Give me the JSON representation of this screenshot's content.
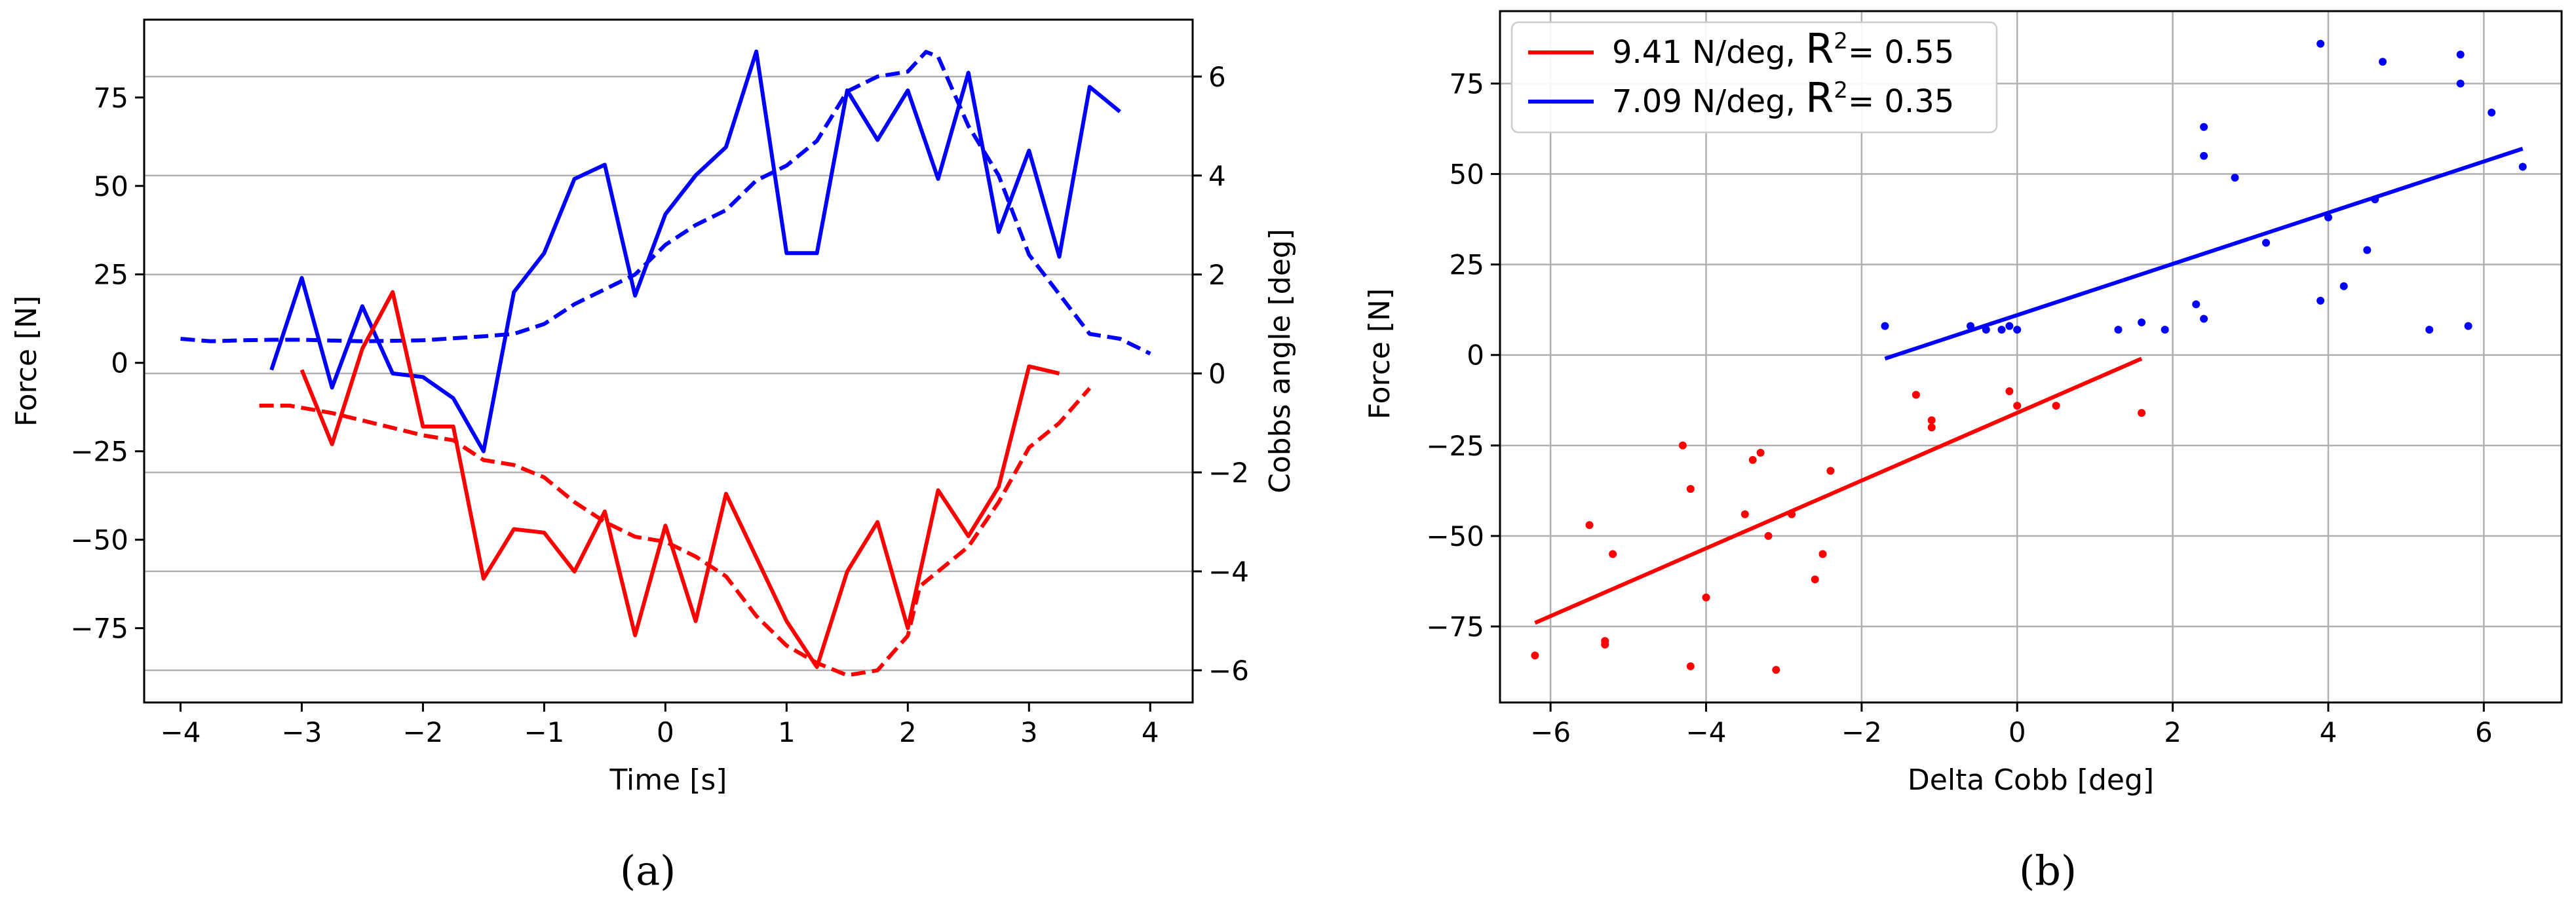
{
  "chart_data": [
    {
      "type": "line",
      "panel_label": "(a)",
      "xlabel": "Time [s]",
      "ylabel": "Force [N]",
      "ylabel_right": "Cobbs angle [deg]",
      "xlim": [
        -4.3,
        4.35
      ],
      "ylim": [
        -96,
        97
      ],
      "ylim_right": [
        -6.65,
        7.15
      ],
      "xticks": [
        -4,
        -3,
        -2,
        -1,
        0,
        1,
        2,
        3,
        4
      ],
      "xtick_labels": [
        "−4",
        "−3",
        "−2",
        "−1",
        "0",
        "1",
        "2",
        "3",
        "4"
      ],
      "yticks": [
        -75,
        -50,
        -25,
        0,
        25,
        50,
        75
      ],
      "ytick_labels": [
        "−75",
        "−50",
        "−25",
        "0",
        "25",
        "50",
        "75"
      ],
      "yticks_right": [
        -6,
        -4,
        -2,
        0,
        2,
        4,
        6
      ],
      "ytick_labels_right": [
        "−6",
        "−4",
        "−2",
        "0",
        "2",
        "4",
        "6"
      ],
      "grid": "horizontal lines at right-axis ticks",
      "series": [
        {
          "color": "#0000ff",
          "style": "solid",
          "axis": "left",
          "x": [
            -3.25,
            -3.0,
            -2.75,
            -2.5,
            -2.25,
            -2.0,
            -1.75,
            -1.5,
            -1.25,
            -1.0,
            -0.75,
            -0.5,
            -0.25,
            0.0,
            0.25,
            0.5,
            0.75,
            1.0,
            1.25,
            1.5,
            1.75,
            2.0,
            2.25,
            2.5,
            2.75,
            3.0,
            3.25,
            3.5,
            3.75
          ],
          "y": [
            -2,
            24,
            -7,
            16,
            -3,
            -4,
            -10,
            -25,
            20,
            31,
            52,
            56,
            19,
            42,
            53,
            61,
            88,
            31,
            31,
            77,
            63,
            77,
            52,
            82,
            37,
            60,
            30,
            78,
            71
          ]
        },
        {
          "color": "#0000ff",
          "style": "dashed",
          "axis": "right",
          "x": [
            -4.0,
            -3.75,
            -3.5,
            -3.25,
            -3.0,
            -2.5,
            -2.0,
            -1.5,
            -1.25,
            -1.0,
            -0.75,
            -0.5,
            -0.25,
            0.0,
            0.25,
            0.5,
            0.75,
            1.0,
            1.25,
            1.5,
            1.75,
            2.0,
            2.15,
            2.25,
            2.5,
            2.75,
            3.0,
            3.25,
            3.5,
            3.75,
            4.0
          ],
          "y": [
            0.7,
            0.65,
            0.67,
            0.68,
            0.68,
            0.65,
            0.67,
            0.75,
            0.8,
            1.0,
            1.4,
            1.7,
            2.0,
            2.6,
            3.0,
            3.3,
            3.9,
            4.2,
            4.7,
            5.7,
            6.0,
            6.1,
            6.5,
            6.4,
            5.0,
            4.0,
            2.4,
            1.6,
            0.8,
            0.7,
            0.4
          ]
        },
        {
          "color": "#ff0000",
          "style": "solid",
          "axis": "left",
          "x": [
            -3.0,
            -2.75,
            -2.5,
            -2.25,
            -2.0,
            -1.75,
            -1.5,
            -1.25,
            -1.0,
            -0.75,
            -0.5,
            -0.25,
            0.0,
            0.25,
            0.5,
            0.75,
            1.0,
            1.25,
            1.5,
            1.75,
            2.0,
            2.25,
            2.5,
            2.75,
            3.0,
            3.25
          ],
          "y": [
            -2,
            -23,
            4,
            20,
            -18,
            -18,
            -61,
            -47,
            -48,
            -59,
            -42,
            -77,
            -46,
            -73,
            -37,
            -55,
            -73,
            -86,
            -59,
            -45,
            -75,
            -36,
            -49,
            -35,
            -1,
            -3
          ]
        },
        {
          "color": "#ff0000",
          "style": "dashed",
          "axis": "right",
          "x": [
            -3.35,
            -3.1,
            -2.75,
            -2.5,
            -2.25,
            -2.0,
            -1.75,
            -1.5,
            -1.25,
            -1.0,
            -0.75,
            -0.5,
            -0.25,
            0.0,
            0.25,
            0.5,
            0.75,
            1.0,
            1.25,
            1.5,
            1.75,
            2.0,
            2.1,
            2.25,
            2.5,
            2.75,
            3.0,
            3.25,
            3.5
          ],
          "y": [
            -0.65,
            -0.65,
            -0.8,
            -0.95,
            -1.1,
            -1.25,
            -1.35,
            -1.75,
            -1.85,
            -2.1,
            -2.6,
            -3.0,
            -3.3,
            -3.4,
            -3.7,
            -4.1,
            -4.9,
            -5.5,
            -5.85,
            -6.1,
            -6.0,
            -5.3,
            -4.3,
            -4.0,
            -3.5,
            -2.6,
            -1.5,
            -1.0,
            -0.3
          ]
        }
      ]
    },
    {
      "type": "scatter",
      "panel_label": "(b)",
      "xlabel": "Delta Cobb [deg]",
      "ylabel": "Force [N]",
      "xlim": [
        -6.65,
        7.0
      ],
      "ylim": [
        -96,
        95
      ],
      "xticks": [
        -6,
        -4,
        -2,
        0,
        2,
        4,
        6
      ],
      "xtick_labels": [
        "−6",
        "−4",
        "−2",
        "0",
        "2",
        "4",
        "6"
      ],
      "yticks": [
        -75,
        -50,
        -25,
        0,
        25,
        50,
        75
      ],
      "ytick_labels": [
        "−75",
        "−50",
        "−25",
        "0",
        "25",
        "50",
        "75"
      ],
      "grid": true,
      "legend": "upper-left",
      "series": [
        {
          "color": "#ff0000",
          "legend_text": "9.41 N/deg,",
          "r_label": "R",
          "r_sup": "2",
          "r_value": "= 0.55",
          "fit": {
            "x": [
              -6.2,
              1.6
            ],
            "y": [
              -74,
              -1
            ]
          },
          "points": [
            [
              -6.2,
              -83
            ],
            [
              -5.3,
              -79
            ],
            [
              -5.3,
              -80
            ],
            [
              -5.5,
              -47
            ],
            [
              -5.2,
              -55
            ],
            [
              -4.3,
              -25
            ],
            [
              -4.2,
              -37
            ],
            [
              -4.2,
              -86
            ],
            [
              -4.0,
              -67
            ],
            [
              -3.5,
              -44
            ],
            [
              -3.4,
              -29
            ],
            [
              -3.3,
              -27
            ],
            [
              -3.2,
              -50
            ],
            [
              -3.1,
              -87
            ],
            [
              -2.9,
              -44
            ],
            [
              -2.6,
              -62
            ],
            [
              -2.5,
              -55
            ],
            [
              -2.4,
              -32
            ],
            [
              -1.3,
              -11
            ],
            [
              -1.1,
              -18
            ],
            [
              -1.1,
              -20
            ],
            [
              -0.1,
              -10
            ],
            [
              0.0,
              -14
            ],
            [
              0.5,
              -14
            ],
            [
              1.6,
              -16
            ]
          ]
        },
        {
          "color": "#0000ff",
          "legend_text": "7.09 N/deg,",
          "r_label": "R",
          "r_sup": "2",
          "r_value": "= 0.35",
          "fit": {
            "x": [
              -1.7,
              6.5
            ],
            "y": [
              -1,
              57
            ]
          },
          "points": [
            [
              -1.7,
              8
            ],
            [
              -0.6,
              8
            ],
            [
              -0.4,
              7
            ],
            [
              -0.2,
              7
            ],
            [
              -0.1,
              8
            ],
            [
              0.0,
              7
            ],
            [
              1.3,
              7
            ],
            [
              1.6,
              9
            ],
            [
              1.9,
              7
            ],
            [
              2.3,
              14
            ],
            [
              2.4,
              10
            ],
            [
              2.4,
              55
            ],
            [
              2.4,
              63
            ],
            [
              2.8,
              49
            ],
            [
              3.2,
              31
            ],
            [
              3.9,
              15
            ],
            [
              3.9,
              86
            ],
            [
              4.0,
              38
            ],
            [
              4.2,
              19
            ],
            [
              4.5,
              29
            ],
            [
              4.6,
              43
            ],
            [
              4.7,
              81
            ],
            [
              5.3,
              7
            ],
            [
              5.7,
              83
            ],
            [
              5.7,
              75
            ],
            [
              5.8,
              8
            ],
            [
              6.1,
              67
            ],
            [
              6.5,
              52
            ]
          ]
        }
      ]
    }
  ]
}
